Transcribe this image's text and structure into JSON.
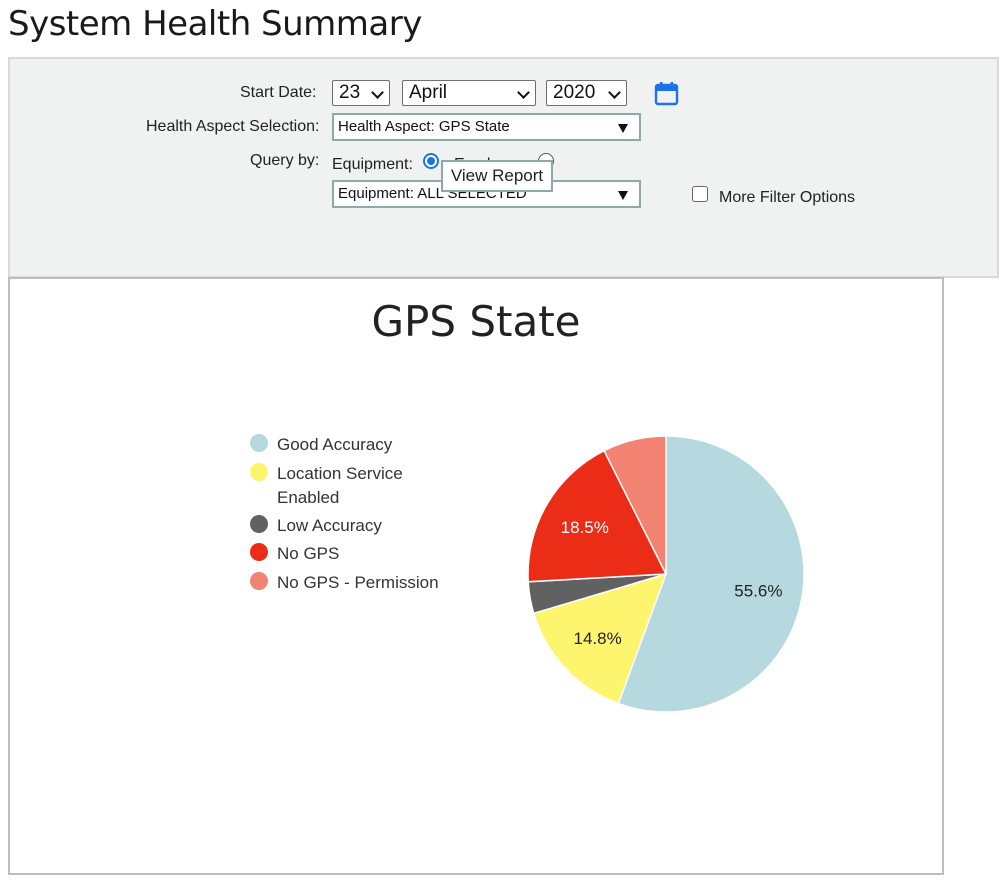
{
  "page": {
    "title": "System Health Summary"
  },
  "filters": {
    "start_date_label": "Start Date:",
    "day": "23",
    "month": "April",
    "year": "2020",
    "health_aspect_label": "Health Aspect Selection:",
    "health_aspect_value": "Health Aspect: GPS State",
    "query_by_label": "Query by:",
    "equipment_label": "Equipment:",
    "employee_label": "Employee:",
    "equipment_value": "Equipment: ALL SELECTED",
    "more_filter_label": "More Filter Options",
    "more_filter_checked": false,
    "query_by_selected": "Equipment",
    "view_report_label": "View Report",
    "calendar_icon": "calendar-icon",
    "accent_color": "#1a73e8"
  },
  "chart_data": {
    "type": "pie",
    "title": "GPS State",
    "legend_position": "left",
    "slices": [
      {
        "name": "Good Accuracy",
        "value": 55.6,
        "label": "55.6%",
        "color": "#b6d8df"
      },
      {
        "name": "Location Service Enabled",
        "value": 14.8,
        "label": "14.8%",
        "color": "#fdf56e"
      },
      {
        "name": "Low Accuracy",
        "value": 3.7,
        "label": "",
        "color": "#616161"
      },
      {
        "name": "No GPS",
        "value": 18.5,
        "label": "18.5%",
        "color": "#eb2d17"
      },
      {
        "name": "No GPS - Permission",
        "value": 7.4,
        "label": "",
        "color": "#f28272"
      }
    ]
  }
}
